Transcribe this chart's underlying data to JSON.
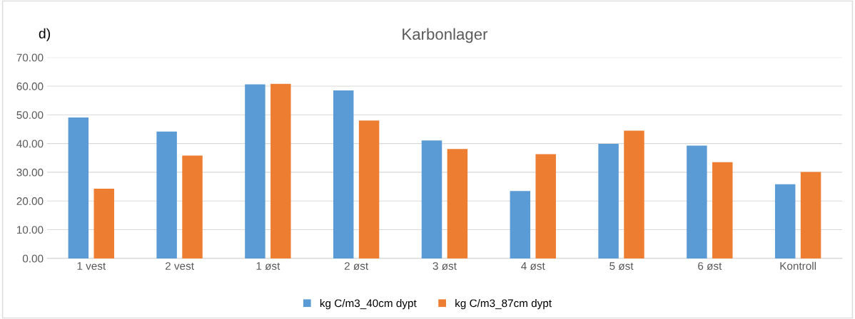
{
  "chart_data": {
    "type": "bar",
    "title": "Karbonlager",
    "annotations": [
      "d)"
    ],
    "categories": [
      "1 vest",
      "2 vest",
      "1 øst",
      "2 øst",
      "3 øst",
      "4 øst",
      "5 øst",
      "6 øst",
      "Kontroll"
    ],
    "series": [
      {
        "name": "kg C/m3_40cm dypt",
        "color": "#5b9bd5",
        "values": [
          49.1,
          44.2,
          60.6,
          58.5,
          41.1,
          23.5,
          39.9,
          39.3,
          25.8
        ]
      },
      {
        "name": "kg C/m3_87cm dypt",
        "color": "#ed7d31",
        "values": [
          24.3,
          35.8,
          60.8,
          48.0,
          38.1,
          36.3,
          44.5,
          33.5,
          30.1
        ]
      }
    ],
    "ylim": [
      0,
      70
    ],
    "yticks": [
      {
        "value": 0,
        "label": "0.00"
      },
      {
        "value": 10,
        "label": "10.00"
      },
      {
        "value": 20,
        "label": "20.00"
      },
      {
        "value": 30,
        "label": "30.00"
      },
      {
        "value": 40,
        "label": "40.00"
      },
      {
        "value": 50,
        "label": "50.00"
      },
      {
        "value": 60,
        "label": "60.00"
      },
      {
        "value": 70,
        "label": "70.00"
      }
    ],
    "grid": "y",
    "legend": "bottom"
  }
}
